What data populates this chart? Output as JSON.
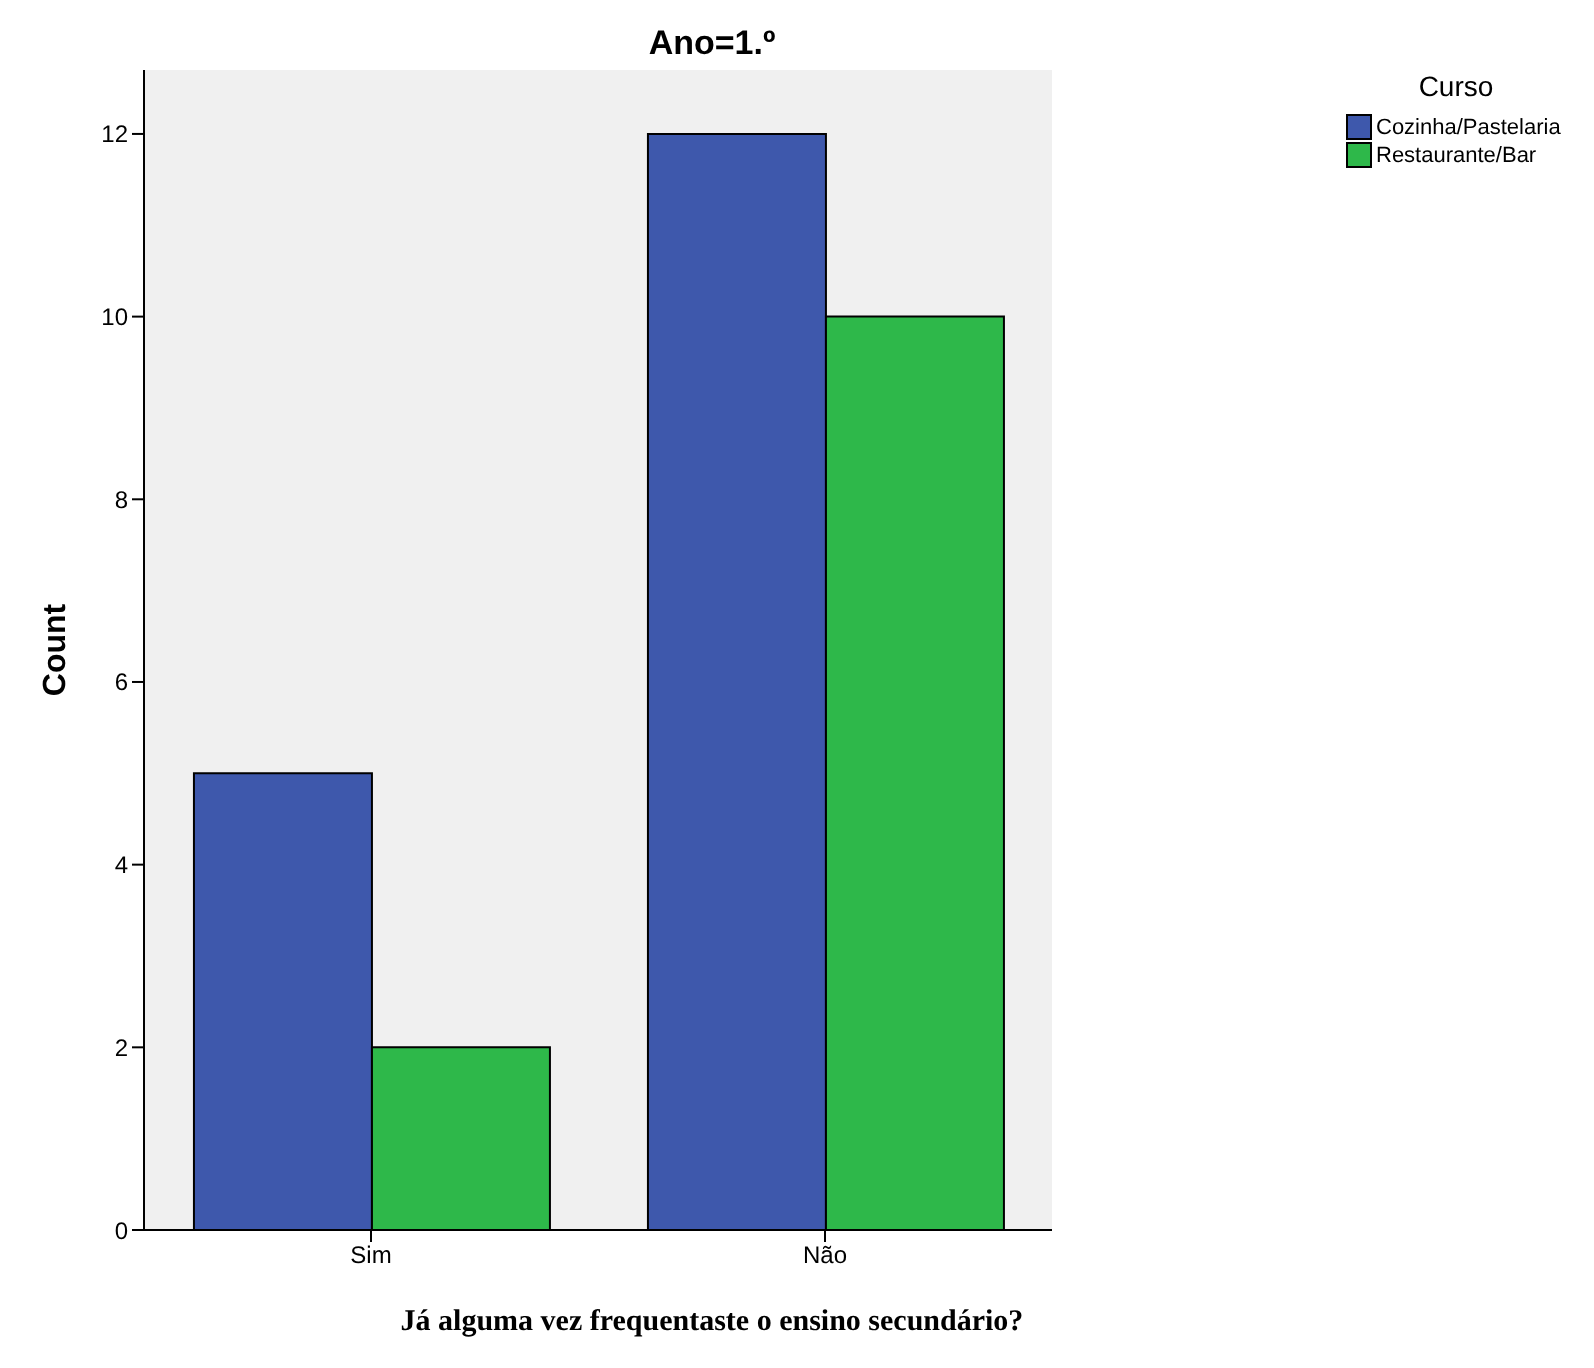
{
  "chart_data": {
    "type": "bar",
    "title": "Ano=1.º",
    "xlabel": "Já alguma vez frequentaste o ensino secundário?",
    "ylabel": "Count",
    "legend_title": "Curso",
    "legend": "top right",
    "categories": [
      "Sim",
      "Não"
    ],
    "ylim": [
      0,
      12.7
    ],
    "yticks": [
      0,
      2,
      4,
      6,
      8,
      10,
      12
    ],
    "series": [
      {
        "name": "Cozinha/Pastelaria",
        "color": "#3e58ac",
        "values": [
          5,
          12
        ]
      },
      {
        "name": "Restaurante/Bar",
        "color": "#2eb84a",
        "values": [
          2,
          10
        ]
      }
    ]
  }
}
